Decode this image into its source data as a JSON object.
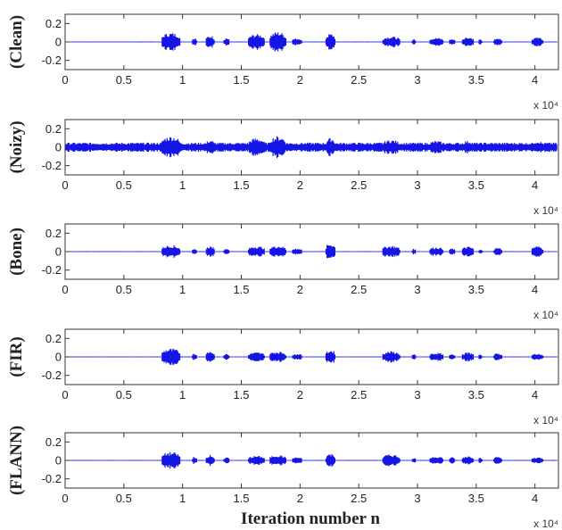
{
  "chart_data": {
    "type": "line",
    "xlabel": "Iteration number n",
    "x_multiplier_label": "x 10⁴",
    "xlim": [
      0,
      4.2
    ],
    "x_ticks": [
      "0",
      "0.5",
      "1",
      "1.5",
      "2",
      "2.5",
      "3",
      "3.5",
      "4"
    ],
    "y_ticks": [
      "0.2",
      "0",
      "-0.2"
    ],
    "colors": {
      "signal": "#1515e6",
      "baseline": "#6a6aff",
      "axis": "#333333"
    },
    "panels": [
      {
        "ylabel": "(Clean)",
        "ylim": [
          -0.3,
          0.3
        ],
        "noise_floor": 0.004,
        "bursts": [
          [
            0.82,
            0.98,
            0.1
          ],
          [
            1.08,
            1.12,
            0.05
          ],
          [
            1.2,
            1.27,
            0.07
          ],
          [
            1.35,
            1.4,
            0.04
          ],
          [
            1.56,
            1.7,
            0.085
          ],
          [
            1.74,
            1.88,
            0.11
          ],
          [
            1.93,
            2.02,
            0.04
          ],
          [
            2.22,
            2.3,
            0.09
          ],
          [
            2.7,
            2.85,
            0.06
          ],
          [
            2.95,
            2.99,
            0.03
          ],
          [
            3.1,
            3.22,
            0.045
          ],
          [
            3.27,
            3.32,
            0.035
          ],
          [
            3.38,
            3.48,
            0.055
          ],
          [
            3.52,
            3.55,
            0.03
          ],
          [
            3.65,
            3.72,
            0.045
          ],
          [
            3.97,
            4.07,
            0.05
          ]
        ]
      },
      {
        "ylabel": "(Noizy)",
        "ylim": [
          -0.3,
          0.3
        ],
        "noise_floor": 0.05,
        "bursts": [
          [
            0.82,
            0.98,
            0.12
          ],
          [
            1.2,
            1.27,
            0.08
          ],
          [
            1.56,
            1.7,
            0.1
          ],
          [
            1.74,
            1.88,
            0.12
          ],
          [
            2.22,
            2.3,
            0.1
          ],
          [
            2.7,
            2.85,
            0.08
          ],
          [
            3.1,
            3.22,
            0.07
          ],
          [
            3.38,
            3.48,
            0.07
          ],
          [
            3.97,
            4.07,
            0.07
          ]
        ]
      },
      {
        "ylabel": "(Bone)",
        "ylim": [
          -0.3,
          0.3
        ],
        "noise_floor": 0.004,
        "bursts": [
          [
            0.82,
            0.98,
            0.07
          ],
          [
            1.08,
            1.12,
            0.04
          ],
          [
            1.2,
            1.27,
            0.06
          ],
          [
            1.35,
            1.4,
            0.035
          ],
          [
            1.56,
            1.7,
            0.06
          ],
          [
            1.74,
            1.88,
            0.065
          ],
          [
            1.93,
            2.02,
            0.035
          ],
          [
            2.22,
            2.3,
            0.09
          ],
          [
            2.7,
            2.85,
            0.065
          ],
          [
            2.95,
            2.99,
            0.03
          ],
          [
            3.1,
            3.22,
            0.05
          ],
          [
            3.27,
            3.32,
            0.035
          ],
          [
            3.38,
            3.48,
            0.055
          ],
          [
            3.52,
            3.55,
            0.03
          ],
          [
            3.65,
            3.72,
            0.045
          ],
          [
            3.97,
            4.07,
            0.06
          ]
        ]
      },
      {
        "ylabel": "(FIR)",
        "ylim": [
          -0.3,
          0.3
        ],
        "noise_floor": 0.004,
        "bursts": [
          [
            0.82,
            0.98,
            0.09
          ],
          [
            1.08,
            1.12,
            0.04
          ],
          [
            1.2,
            1.27,
            0.06
          ],
          [
            1.35,
            1.4,
            0.035
          ],
          [
            1.56,
            1.7,
            0.05
          ],
          [
            1.74,
            1.88,
            0.06
          ],
          [
            1.93,
            2.02,
            0.035
          ],
          [
            2.22,
            2.3,
            0.075
          ],
          [
            2.7,
            2.85,
            0.06
          ],
          [
            2.95,
            2.99,
            0.03
          ],
          [
            3.1,
            3.22,
            0.045
          ],
          [
            3.27,
            3.32,
            0.035
          ],
          [
            3.38,
            3.48,
            0.05
          ],
          [
            3.52,
            3.55,
            0.03
          ],
          [
            3.65,
            3.72,
            0.04
          ],
          [
            3.97,
            4.07,
            0.035
          ]
        ]
      },
      {
        "ylabel": "(FLANN)",
        "ylim": [
          -0.3,
          0.3
        ],
        "noise_floor": 0.004,
        "bursts": [
          [
            0.82,
            0.98,
            0.09
          ],
          [
            1.08,
            1.12,
            0.04
          ],
          [
            1.2,
            1.27,
            0.06
          ],
          [
            1.35,
            1.4,
            0.035
          ],
          [
            1.56,
            1.7,
            0.05
          ],
          [
            1.74,
            1.88,
            0.06
          ],
          [
            1.93,
            2.02,
            0.035
          ],
          [
            2.22,
            2.3,
            0.075
          ],
          [
            2.7,
            2.85,
            0.065
          ],
          [
            2.95,
            2.99,
            0.03
          ],
          [
            3.1,
            3.22,
            0.045
          ],
          [
            3.27,
            3.32,
            0.035
          ],
          [
            3.38,
            3.48,
            0.05
          ],
          [
            3.52,
            3.55,
            0.03
          ],
          [
            3.65,
            3.72,
            0.04
          ],
          [
            3.97,
            4.07,
            0.035
          ]
        ]
      }
    ]
  }
}
